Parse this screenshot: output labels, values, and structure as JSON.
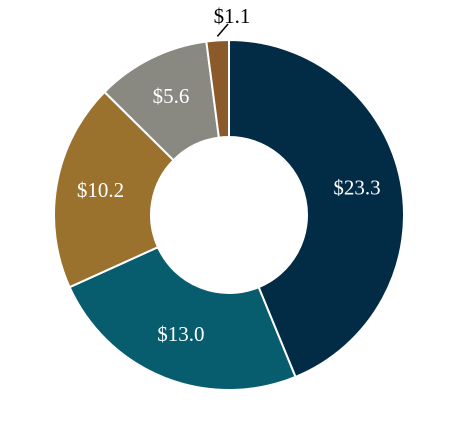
{
  "chart_data": {
    "type": "donut",
    "values": [
      23.3,
      13.0,
      10.2,
      5.6,
      1.1
    ],
    "value_labels": [
      "$23.3",
      "$13.0",
      "$10.2",
      "$5.6",
      "$1.1"
    ],
    "colors": [
      "#022b46",
      "#075d6d",
      "#9a712d",
      "#898881",
      "#8b5a2a"
    ]
  }
}
